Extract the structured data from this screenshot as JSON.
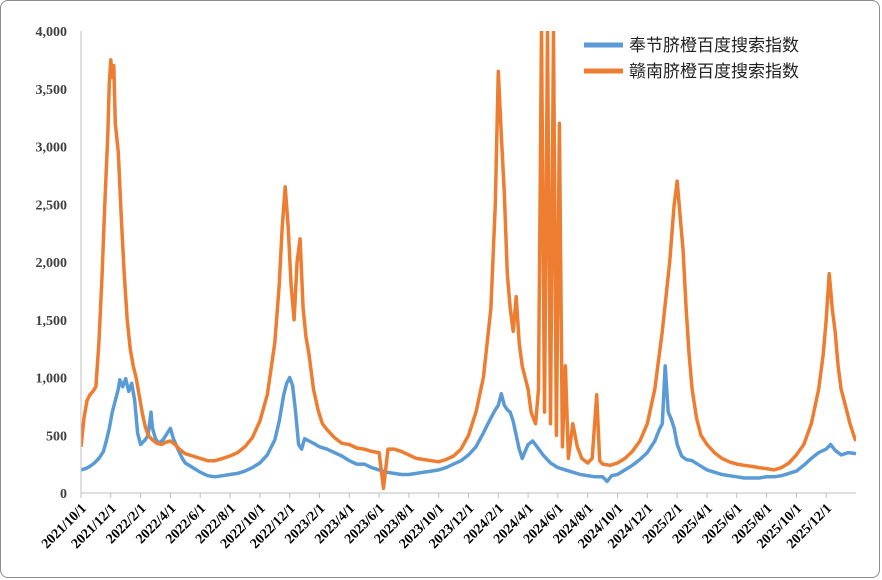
{
  "chart_data": {
    "type": "line",
    "title": "",
    "xlabel": "",
    "ylabel": "",
    "ylim": [
      0,
      4000
    ],
    "yticks": [
      "0",
      "500",
      "1,000",
      "1,500",
      "2,000",
      "2,500",
      "3,000",
      "3,500",
      "4,000"
    ],
    "x_tick_labels": [
      "2021/10/1",
      "2021/12/1",
      "2022/2/1",
      "2022/4/1",
      "2022/6/1",
      "2022/8/1",
      "2022/10/1",
      "2022/12/1",
      "2023/2/1",
      "2023/4/1",
      "2023/6/1",
      "2023/8/1",
      "2023/10/1",
      "2023/12/1",
      "2024/2/1",
      "2024/4/1",
      "2024/6/1",
      "2024/8/1",
      "2024/10/1",
      "2024/12/1",
      "2025/2/1",
      "2025/4/1",
      "2025/6/1",
      "2025/8/1",
      "2025/10/1",
      "2025/12/1"
    ],
    "x_range_months": [
      0,
      52
    ],
    "legend_position": "top-right",
    "grid": false,
    "series": [
      {
        "name": "奉节脐橙百度搜索指数",
        "color": "#5b9bd5",
        "points": [
          [
            0,
            200
          ],
          [
            0.3,
            210
          ],
          [
            0.6,
            230
          ],
          [
            0.9,
            260
          ],
          [
            1.2,
            300
          ],
          [
            1.5,
            360
          ],
          [
            1.7,
            450
          ],
          [
            1.9,
            560
          ],
          [
            2.1,
            700
          ],
          [
            2.3,
            800
          ],
          [
            2.5,
            900
          ],
          [
            2.6,
            980
          ],
          [
            2.8,
            920
          ],
          [
            3.0,
            990
          ],
          [
            3.2,
            880
          ],
          [
            3.4,
            950
          ],
          [
            3.6,
            800
          ],
          [
            3.8,
            520
          ],
          [
            4.0,
            420
          ],
          [
            4.3,
            460
          ],
          [
            4.5,
            500
          ],
          [
            4.7,
            700
          ],
          [
            4.8,
            560
          ],
          [
            5.0,
            470
          ],
          [
            5.2,
            430
          ],
          [
            5.5,
            460
          ],
          [
            5.8,
            520
          ],
          [
            6.0,
            560
          ],
          [
            6.2,
            470
          ],
          [
            6.5,
            380
          ],
          [
            6.8,
            300
          ],
          [
            7.0,
            260
          ],
          [
            7.5,
            220
          ],
          [
            8.0,
            180
          ],
          [
            8.5,
            150
          ],
          [
            9.0,
            140
          ],
          [
            9.5,
            150
          ],
          [
            10.0,
            160
          ],
          [
            10.5,
            170
          ],
          [
            11.0,
            190
          ],
          [
            11.5,
            220
          ],
          [
            12.0,
            260
          ],
          [
            12.5,
            330
          ],
          [
            13.0,
            460
          ],
          [
            13.3,
            620
          ],
          [
            13.6,
            850
          ],
          [
            13.8,
            950
          ],
          [
            14.0,
            1000
          ],
          [
            14.2,
            930
          ],
          [
            14.4,
            700
          ],
          [
            14.6,
            420
          ],
          [
            14.8,
            380
          ],
          [
            15.0,
            470
          ],
          [
            15.3,
            450
          ],
          [
            15.6,
            430
          ],
          [
            16.0,
            400
          ],
          [
            16.5,
            380
          ],
          [
            17.0,
            350
          ],
          [
            17.5,
            320
          ],
          [
            18.0,
            280
          ],
          [
            18.5,
            250
          ],
          [
            19.0,
            250
          ],
          [
            19.5,
            220
          ],
          [
            20.0,
            200
          ],
          [
            20.5,
            180
          ],
          [
            21.0,
            170
          ],
          [
            21.5,
            160
          ],
          [
            22.0,
            160
          ],
          [
            22.5,
            170
          ],
          [
            23.0,
            180
          ],
          [
            23.5,
            190
          ],
          [
            24.0,
            200
          ],
          [
            24.5,
            220
          ],
          [
            25.0,
            250
          ],
          [
            25.5,
            280
          ],
          [
            26.0,
            330
          ],
          [
            26.5,
            400
          ],
          [
            27.0,
            520
          ],
          [
            27.5,
            650
          ],
          [
            27.8,
            720
          ],
          [
            28.0,
            760
          ],
          [
            28.2,
            860
          ],
          [
            28.4,
            760
          ],
          [
            28.6,
            720
          ],
          [
            28.8,
            700
          ],
          [
            29.0,
            620
          ],
          [
            29.2,
            500
          ],
          [
            29.4,
            380
          ],
          [
            29.6,
            300
          ],
          [
            29.8,
            360
          ],
          [
            30.0,
            420
          ],
          [
            30.3,
            450
          ],
          [
            30.6,
            400
          ],
          [
            31.0,
            330
          ],
          [
            31.5,
            260
          ],
          [
            32.0,
            220
          ],
          [
            32.5,
            200
          ],
          [
            33.0,
            180
          ],
          [
            33.5,
            160
          ],
          [
            34.0,
            150
          ],
          [
            34.5,
            140
          ],
          [
            35.0,
            140
          ],
          [
            35.3,
            100
          ],
          [
            35.6,
            150
          ],
          [
            36.0,
            160
          ],
          [
            36.5,
            200
          ],
          [
            37.0,
            240
          ],
          [
            37.5,
            290
          ],
          [
            38.0,
            350
          ],
          [
            38.5,
            450
          ],
          [
            38.8,
            550
          ],
          [
            39.0,
            600
          ],
          [
            39.2,
            1100
          ],
          [
            39.4,
            700
          ],
          [
            39.6,
            640
          ],
          [
            39.8,
            560
          ],
          [
            40.0,
            420
          ],
          [
            40.3,
            320
          ],
          [
            40.6,
            290
          ],
          [
            41.0,
            280
          ],
          [
            41.5,
            240
          ],
          [
            42.0,
            200
          ],
          [
            42.5,
            180
          ],
          [
            43.0,
            160
          ],
          [
            43.5,
            150
          ],
          [
            44.0,
            140
          ],
          [
            44.5,
            130
          ],
          [
            45.0,
            130
          ],
          [
            45.5,
            130
          ],
          [
            46.0,
            140
          ],
          [
            46.5,
            140
          ],
          [
            47.0,
            150
          ],
          [
            47.5,
            170
          ],
          [
            48.0,
            190
          ],
          [
            48.5,
            240
          ],
          [
            49.0,
            300
          ],
          [
            49.5,
            350
          ],
          [
            50.0,
            380
          ],
          [
            50.3,
            420
          ],
          [
            50.6,
            370
          ],
          [
            51.0,
            330
          ],
          [
            51.5,
            350
          ],
          [
            52.0,
            340
          ]
        ]
      },
      {
        "name": "赣南脐橙百度搜索指数",
        "color": "#ed7d31",
        "points": [
          [
            0,
            400
          ],
          [
            0.2,
            650
          ],
          [
            0.4,
            800
          ],
          [
            0.6,
            850
          ],
          [
            0.8,
            880
          ],
          [
            1.0,
            920
          ],
          [
            1.2,
            1300
          ],
          [
            1.4,
            1850
          ],
          [
            1.6,
            2500
          ],
          [
            1.8,
            3100
          ],
          [
            1.9,
            3550
          ],
          [
            2.0,
            3750
          ],
          [
            2.1,
            3600
          ],
          [
            2.2,
            3700
          ],
          [
            2.3,
            3200
          ],
          [
            2.5,
            2950
          ],
          [
            2.7,
            2400
          ],
          [
            2.9,
            1900
          ],
          [
            3.1,
            1500
          ],
          [
            3.3,
            1250
          ],
          [
            3.5,
            1100
          ],
          [
            3.7,
            1000
          ],
          [
            3.9,
            850
          ],
          [
            4.1,
            700
          ],
          [
            4.3,
            580
          ],
          [
            4.5,
            500
          ],
          [
            4.8,
            460
          ],
          [
            5.1,
            430
          ],
          [
            5.4,
            420
          ],
          [
            5.7,
            440
          ],
          [
            6.0,
            450
          ],
          [
            6.3,
            420
          ],
          [
            6.6,
            380
          ],
          [
            7.0,
            340
          ],
          [
            7.5,
            320
          ],
          [
            8.0,
            300
          ],
          [
            8.5,
            280
          ],
          [
            9.0,
            280
          ],
          [
            9.5,
            300
          ],
          [
            10.0,
            320
          ],
          [
            10.5,
            350
          ],
          [
            11.0,
            400
          ],
          [
            11.5,
            480
          ],
          [
            12.0,
            620
          ],
          [
            12.5,
            850
          ],
          [
            13.0,
            1300
          ],
          [
            13.3,
            1800
          ],
          [
            13.5,
            2300
          ],
          [
            13.7,
            2650
          ],
          [
            13.9,
            2300
          ],
          [
            14.1,
            1800
          ],
          [
            14.3,
            1500
          ],
          [
            14.5,
            2000
          ],
          [
            14.7,
            2200
          ],
          [
            14.9,
            1600
          ],
          [
            15.1,
            1350
          ],
          [
            15.3,
            1200
          ],
          [
            15.6,
            900
          ],
          [
            15.9,
            720
          ],
          [
            16.2,
            600
          ],
          [
            16.5,
            550
          ],
          [
            17.0,
            480
          ],
          [
            17.5,
            430
          ],
          [
            18.0,
            420
          ],
          [
            18.5,
            390
          ],
          [
            19.0,
            380
          ],
          [
            19.5,
            360
          ],
          [
            20.0,
            350
          ],
          [
            20.3,
            40
          ],
          [
            20.6,
            380
          ],
          [
            21.0,
            380
          ],
          [
            21.5,
            360
          ],
          [
            22.0,
            330
          ],
          [
            22.5,
            300
          ],
          [
            23.0,
            290
          ],
          [
            23.5,
            280
          ],
          [
            24.0,
            270
          ],
          [
            24.5,
            290
          ],
          [
            25.0,
            320
          ],
          [
            25.5,
            380
          ],
          [
            26.0,
            500
          ],
          [
            26.5,
            700
          ],
          [
            27.0,
            1000
          ],
          [
            27.5,
            1600
          ],
          [
            27.8,
            2500
          ],
          [
            28.0,
            3650
          ],
          [
            28.2,
            3100
          ],
          [
            28.4,
            2600
          ],
          [
            28.6,
            1900
          ],
          [
            28.8,
            1600
          ],
          [
            29.0,
            1400
          ],
          [
            29.2,
            1700
          ],
          [
            29.4,
            1300
          ],
          [
            29.6,
            1100
          ],
          [
            29.8,
            1000
          ],
          [
            30.0,
            900
          ],
          [
            30.2,
            700
          ],
          [
            30.5,
            600
          ],
          [
            30.7,
            900
          ],
          [
            30.9,
            4000
          ],
          [
            31.1,
            700
          ],
          [
            31.3,
            4000
          ],
          [
            31.5,
            600
          ],
          [
            31.7,
            4000
          ],
          [
            31.9,
            500
          ],
          [
            32.1,
            3200
          ],
          [
            32.3,
            400
          ],
          [
            32.5,
            1100
          ],
          [
            32.7,
            300
          ],
          [
            33.0,
            600
          ],
          [
            33.3,
            400
          ],
          [
            33.6,
            300
          ],
          [
            34.0,
            260
          ],
          [
            34.3,
            300
          ],
          [
            34.6,
            850
          ],
          [
            34.8,
            280
          ],
          [
            35.0,
            250
          ],
          [
            35.5,
            240
          ],
          [
            36.0,
            260
          ],
          [
            36.5,
            300
          ],
          [
            37.0,
            360
          ],
          [
            37.5,
            450
          ],
          [
            38.0,
            600
          ],
          [
            38.5,
            900
          ],
          [
            39.0,
            1400
          ],
          [
            39.5,
            2000
          ],
          [
            39.8,
            2500
          ],
          [
            40.0,
            2700
          ],
          [
            40.2,
            2400
          ],
          [
            40.4,
            2100
          ],
          [
            40.6,
            1600
          ],
          [
            40.8,
            1200
          ],
          [
            41.0,
            900
          ],
          [
            41.3,
            650
          ],
          [
            41.6,
            500
          ],
          [
            42.0,
            420
          ],
          [
            42.5,
            350
          ],
          [
            43.0,
            300
          ],
          [
            43.5,
            270
          ],
          [
            44.0,
            250
          ],
          [
            44.5,
            240
          ],
          [
            45.0,
            230
          ],
          [
            45.5,
            220
          ],
          [
            46.0,
            210
          ],
          [
            46.5,
            200
          ],
          [
            47.0,
            220
          ],
          [
            47.5,
            260
          ],
          [
            48.0,
            330
          ],
          [
            48.5,
            420
          ],
          [
            49.0,
            600
          ],
          [
            49.5,
            900
          ],
          [
            49.8,
            1200
          ],
          [
            50.0,
            1500
          ],
          [
            50.2,
            1900
          ],
          [
            50.4,
            1600
          ],
          [
            50.6,
            1400
          ],
          [
            50.8,
            1100
          ],
          [
            51.0,
            900
          ],
          [
            51.3,
            750
          ],
          [
            51.6,
            600
          ],
          [
            51.9,
            480
          ],
          [
            52.0,
            450
          ]
        ]
      }
    ]
  }
}
